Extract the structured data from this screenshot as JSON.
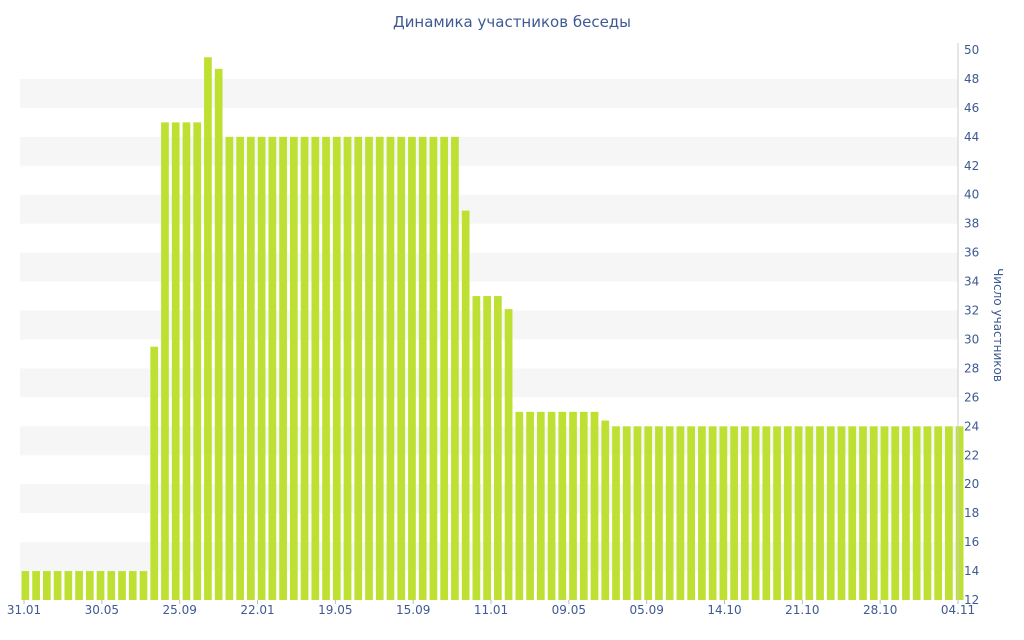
{
  "chart_data": {
    "type": "bar",
    "title": "Динамика участников беседы",
    "xlabel": "",
    "ylabel": "Число участников",
    "ylim": [
      12,
      50
    ],
    "y_ticks": [
      12,
      14,
      16,
      18,
      20,
      22,
      24,
      26,
      28,
      30,
      32,
      34,
      36,
      38,
      40,
      42,
      44,
      46,
      48,
      50
    ],
    "x_tick_labels": [
      "31.01",
      "30.05",
      "25.09",
      "22.01",
      "19.05",
      "15.09",
      "11.01",
      "09.05",
      "05.09",
      "14.10",
      "21.10",
      "28.10",
      "04.11"
    ],
    "grid": "horizontal bands",
    "bar_color": "#bee033",
    "series": [
      {
        "values": [
          14,
          14,
          14,
          14,
          14,
          14,
          14,
          14,
          14,
          14,
          14,
          14,
          29.5,
          45,
          45,
          45,
          45,
          49.5,
          48.7,
          44,
          44,
          44,
          44,
          44,
          44,
          44,
          44,
          44,
          44,
          44,
          44,
          44,
          44,
          44,
          44,
          44,
          44,
          44,
          44,
          44,
          44,
          38.9,
          33,
          33,
          33,
          32.1,
          25,
          25,
          25,
          25,
          25,
          25,
          25,
          25,
          24.4,
          24,
          24,
          24,
          24,
          24,
          24,
          24,
          24,
          24,
          24,
          24,
          24,
          24,
          24,
          24,
          24,
          24,
          24,
          24,
          24,
          24,
          24,
          24,
          24,
          24,
          24,
          24,
          24,
          24,
          24,
          24,
          24,
          24
        ]
      }
    ]
  }
}
